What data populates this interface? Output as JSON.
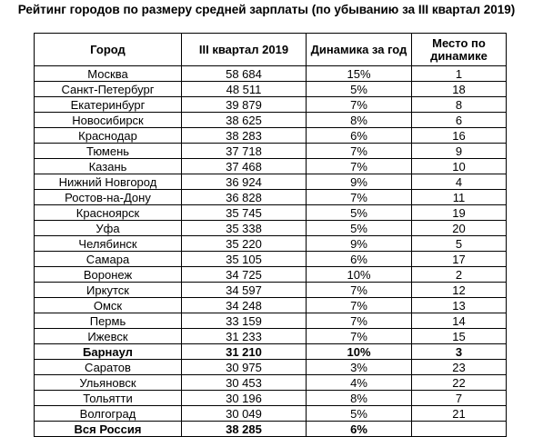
{
  "title": "Рейтинг городов по размеру средней зарплаты (по убыванию за III квартал 2019)",
  "table": {
    "headers": [
      "Город",
      "III квартал 2019",
      "Динамика за год",
      "Место по динамике"
    ],
    "rows": [
      [
        "Москва",
        "58 684",
        "15%",
        "1"
      ],
      [
        "Санкт-Петербург",
        "48 511",
        "5%",
        "18"
      ],
      [
        "Екатеринбург",
        "39 879",
        "7%",
        "8"
      ],
      [
        "Новосибирск",
        "38 625",
        "8%",
        "6"
      ],
      [
        "Краснодар",
        "38 283",
        "6%",
        "16"
      ],
      [
        "Тюмень",
        "37 718",
        "7%",
        "9"
      ],
      [
        "Казань",
        "37 468",
        "7%",
        "10"
      ],
      [
        "Нижний Новгород",
        "36 924",
        "9%",
        "4"
      ],
      [
        "Ростов-на-Дону",
        "36 828",
        "7%",
        "11"
      ],
      [
        "Красноярск",
        "35 745",
        "5%",
        "19"
      ],
      [
        "Уфа",
        "35 338",
        "5%",
        "20"
      ],
      [
        "Челябинск",
        "35 220",
        "9%",
        "5"
      ],
      [
        "Самара",
        "35 105",
        "6%",
        "17"
      ],
      [
        "Воронеж",
        "34 725",
        "10%",
        "2"
      ],
      [
        "Иркутск",
        "34 597",
        "7%",
        "12"
      ],
      [
        "Омск",
        "34 248",
        "7%",
        "13"
      ],
      [
        "Пермь",
        "33 159",
        "7%",
        "14"
      ],
      [
        "Ижевск",
        "31 233",
        "7%",
        "15"
      ],
      [
        "Барнаул",
        "31 210",
        "10%",
        "3"
      ],
      [
        "Саратов",
        "30 975",
        "3%",
        "23"
      ],
      [
        "Ульяновск",
        "30 453",
        "4%",
        "22"
      ],
      [
        "Тольятти",
        "30 196",
        "8%",
        "7"
      ],
      [
        "Волгоград",
        "30 049",
        "5%",
        "21"
      ],
      [
        "Вся Россия",
        "38 285",
        "6%"
      ]
    ]
  }
}
